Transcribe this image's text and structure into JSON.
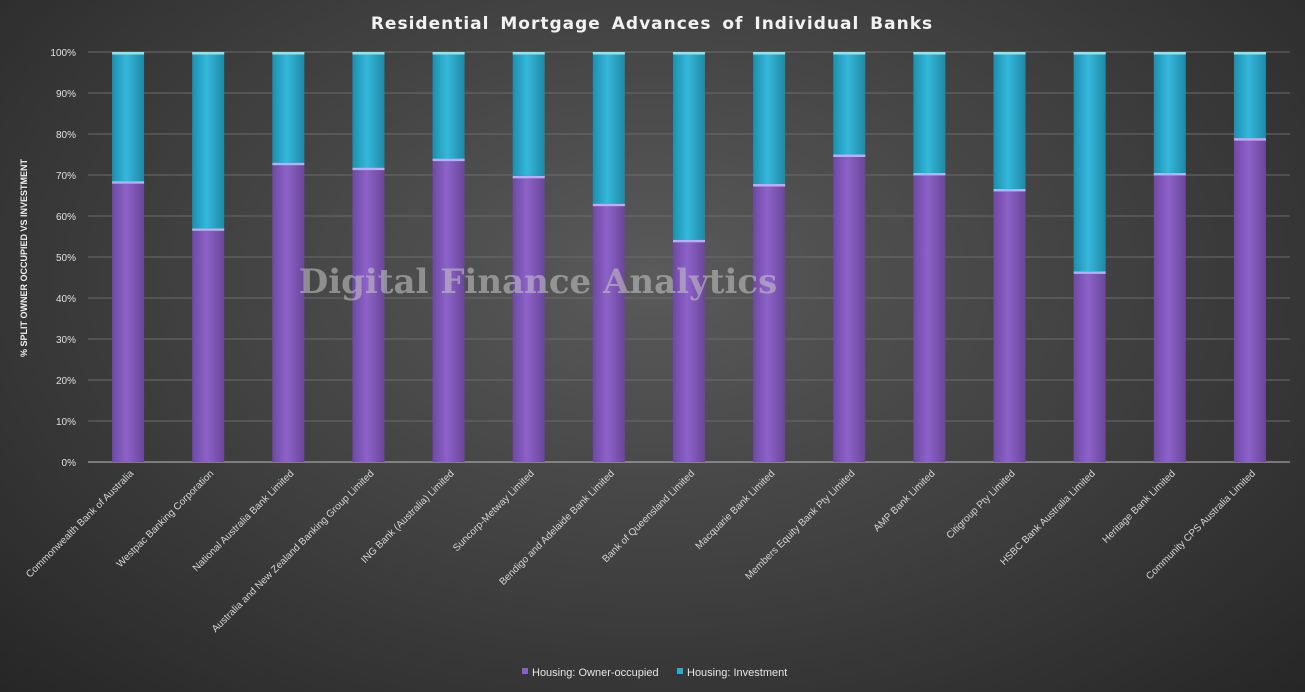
{
  "chart_data": {
    "type": "bar",
    "stacked": true,
    "percent_stacked": true,
    "title": "Residential Mortgage Advances of Individual Banks",
    "ylabel": "% SPLIT OWNER OCCUPIED VS INVESTMENT",
    "xlabel": "",
    "ylim": [
      0,
      100
    ],
    "yticks": [
      "0%",
      "10%",
      "20%",
      "30%",
      "40%",
      "50%",
      "60%",
      "70%",
      "80%",
      "90%",
      "100%"
    ],
    "grid": true,
    "legend_position": "bottom",
    "watermark": "Digital Finance Analytics",
    "categories": [
      "Commonwealth Bank of Australia",
      "Westpac Banking Corporation",
      "National Australia Bank Limited",
      "Australia and New Zealand Banking Group Limited",
      "ING Bank (Australia) Limited",
      "Suncorp-Metway Limited",
      "Bendigo and Adelaide Bank Limited",
      "Bank of Queensland Limited",
      "Macquarie Bank Limited",
      "Members Equity Bank Pty Limited",
      "AMP Bank Limited",
      "Citigroup Pty Limited",
      "HSBC Bank Australia Limited",
      "Heritage Bank Limited",
      "Community CPS Australia Limited"
    ],
    "series": [
      {
        "name": "Housing: Owner-occupied",
        "color": "#8a5fc6",
        "values": [
          68.5,
          57,
          73,
          71.8,
          74,
          69.8,
          63,
          54.2,
          67.8,
          75,
          70.5,
          66.6,
          46.5,
          70.5,
          79
        ]
      },
      {
        "name": "Housing: Investment",
        "color": "#2aaed0",
        "values": [
          31.5,
          43,
          27,
          28.2,
          26,
          30.2,
          37,
          45.8,
          32.2,
          25,
          29.5,
          33.4,
          53.5,
          29.5,
          21
        ]
      }
    ]
  }
}
